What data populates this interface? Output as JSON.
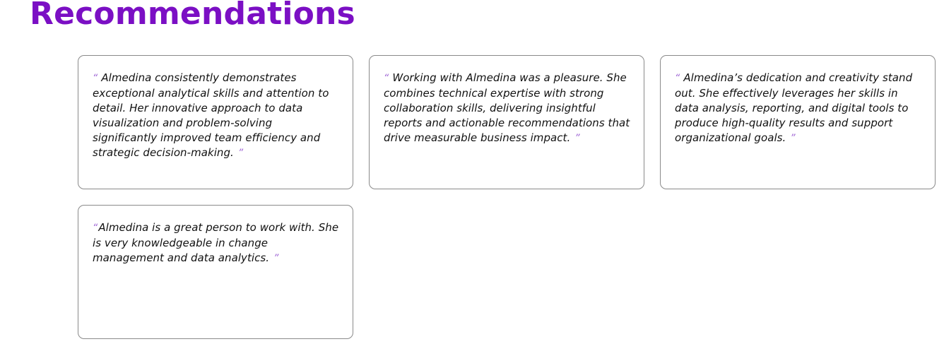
{
  "page": {
    "title": "Recommendations"
  },
  "recommendations": [
    {
      "text": "Almedina consistently demonstrates exceptional analytical skills and attention to detail. Her innovative approach to data visualization and problem-solving significantly improved team efficiency and strategic decision-making."
    },
    {
      "text": "Working with Almedina was a pleasure. She combines technical expertise with strong collaboration skills, delivering insightful reports and actionable recommendations that drive measurable business impact."
    },
    {
      "text": "Almedina’s dedication and creativity stand out. She effectively leverages her skills in data analysis, reporting, and digital tools to produce high-quality results and support organizational goals."
    },
    {
      "text": "Almedina is a great person to work with. She is very knowledgeable in change management and data analytics."
    }
  ],
  "quote_marks": {
    "open": "“",
    "close": "”"
  },
  "colors": {
    "title": "#7b0fc4",
    "quote_mark": "#a26ad6",
    "card_border": "#8a8a8a",
    "text": "#111111"
  }
}
